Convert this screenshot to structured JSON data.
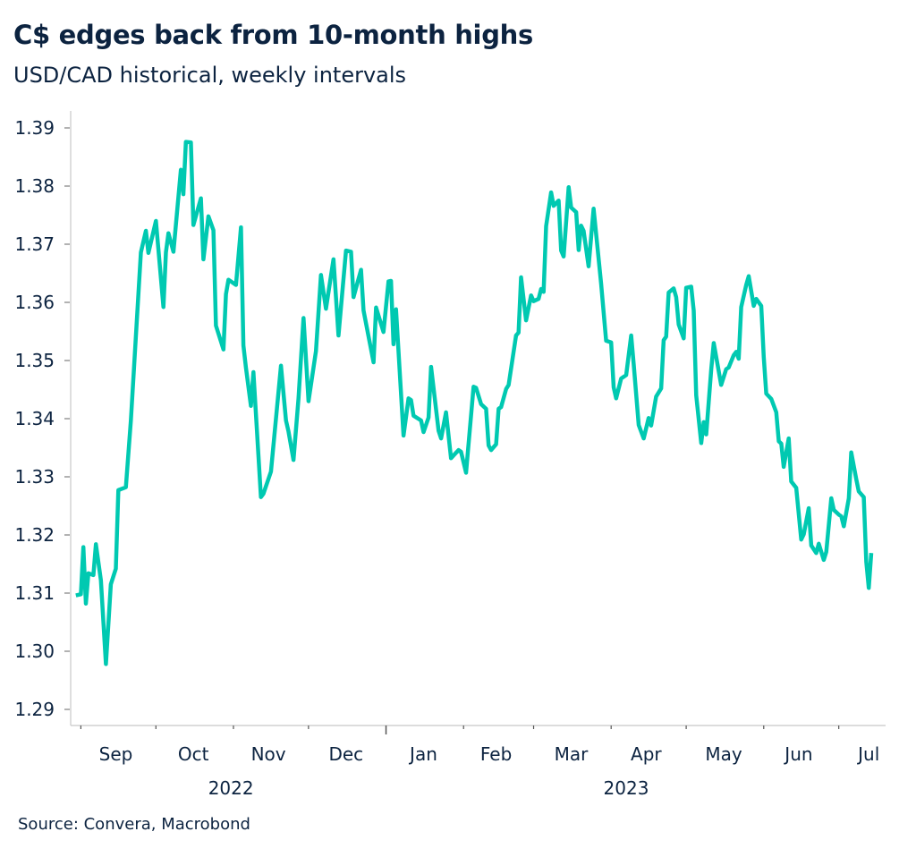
{
  "chart_data": {
    "type": "line",
    "title": "C$ edges back from 10-month highs",
    "subtitle": "USD/CAD historical, weekly intervals",
    "source": "Source: Convera, Macrobond",
    "xlabel": "",
    "ylabel": "",
    "line_color": "#00c9b1",
    "text_color": "#0c2340",
    "grid": false,
    "legend": "none",
    "xlim": [
      "2022-08-29",
      "2023-07-19"
    ],
    "ylim": [
      1.29,
      1.39
    ],
    "y_ticks": [
      "1.29",
      "1.30",
      "1.31",
      "1.32",
      "1.33",
      "1.34",
      "1.35",
      "1.36",
      "1.37",
      "1.38",
      "1.39"
    ],
    "x_month_labels": [
      {
        "label": "Sep",
        "date": "2022-09-15"
      },
      {
        "label": "Oct",
        "date": "2022-10-16"
      },
      {
        "label": "Nov",
        "date": "2022-11-15"
      },
      {
        "label": "Dec",
        "date": "2022-12-16"
      },
      {
        "label": "Jan",
        "date": "2023-01-16"
      },
      {
        "label": "Feb",
        "date": "2023-02-14"
      },
      {
        "label": "Mar",
        "date": "2023-03-16"
      },
      {
        "label": "Apr",
        "date": "2023-04-15"
      },
      {
        "label": "May",
        "date": "2023-05-16"
      },
      {
        "label": "Jun",
        "date": "2023-06-15"
      },
      {
        "label": "Jul",
        "date": "2023-07-13"
      }
    ],
    "x_month_ticks": [
      "2022-09-01",
      "2022-10-01",
      "2022-11-01",
      "2022-12-01",
      "2023-01-01",
      "2023-02-01",
      "2023-03-01",
      "2023-04-01",
      "2023-05-01",
      "2023-06-01",
      "2023-07-01"
    ],
    "x_year_labels": [
      {
        "label": "2022",
        "date": "2022-10-31"
      },
      {
        "label": "2023",
        "date": "2023-04-07"
      }
    ],
    "series": [
      {
        "x": [
          "2022-08-30",
          "2022-09-01",
          "2022-09-02",
          "2022-09-03",
          "2022-09-04",
          "2022-09-06",
          "2022-09-07",
          "2022-09-09",
          "2022-09-11",
          "2022-09-13",
          "2022-09-15",
          "2022-09-16",
          "2022-09-19",
          "2022-09-21",
          "2022-09-25",
          "2022-09-27",
          "2022-09-28",
          "2022-10-01",
          "2022-10-04",
          "2022-10-05",
          "2022-10-06",
          "2022-10-08",
          "2022-10-11",
          "2022-10-12",
          "2022-10-13",
          "2022-10-15",
          "2022-10-16",
          "2022-10-19",
          "2022-10-20",
          "2022-10-22",
          "2022-10-24",
          "2022-10-25",
          "2022-10-28",
          "2022-10-29",
          "2022-10-30",
          "2022-11-02",
          "2022-11-04",
          "2022-11-05",
          "2022-11-06",
          "2022-11-08",
          "2022-11-09",
          "2022-11-12",
          "2022-11-13",
          "2022-11-16",
          "2022-11-20",
          "2022-11-22",
          "2022-11-23",
          "2022-11-25",
          "2022-11-27",
          "2022-11-29",
          "2022-12-01",
          "2022-12-04",
          "2022-12-06",
          "2022-12-08",
          "2022-12-11",
          "2022-12-13",
          "2022-12-16",
          "2022-12-18",
          "2022-12-19",
          "2022-12-22",
          "2022-12-23",
          "2022-12-27",
          "2022-12-28",
          "2022-12-31",
          "2023-01-02",
          "2023-01-03",
          "2023-01-04",
          "2023-01-05",
          "2023-01-08",
          "2023-01-10",
          "2023-01-11",
          "2023-01-12",
          "2023-01-15",
          "2023-01-16",
          "2023-01-18",
          "2023-01-19",
          "2023-01-22",
          "2023-01-23",
          "2023-01-25",
          "2023-01-27",
          "2023-01-30",
          "2023-01-31",
          "2023-02-02",
          "2023-02-05",
          "2023-02-06",
          "2023-02-08",
          "2023-02-10",
          "2023-02-11",
          "2023-02-12",
          "2023-02-14",
          "2023-02-15",
          "2023-02-16",
          "2023-02-18",
          "2023-02-19",
          "2023-02-22",
          "2023-02-23",
          "2023-02-24",
          "2023-02-26",
          "2023-02-28",
          "2023-03-01",
          "2023-03-03",
          "2023-03-04",
          "2023-03-05",
          "2023-03-06",
          "2023-03-08",
          "2023-03-09",
          "2023-03-11",
          "2023-03-12",
          "2023-03-13",
          "2023-03-15",
          "2023-03-16",
          "2023-03-18",
          "2023-03-19",
          "2023-03-20",
          "2023-03-21",
          "2023-03-23",
          "2023-03-25",
          "2023-03-28",
          "2023-03-30",
          "2023-04-01",
          "2023-04-02",
          "2023-04-03",
          "2023-04-05",
          "2023-04-07",
          "2023-04-09",
          "2023-04-10",
          "2023-04-12",
          "2023-04-14",
          "2023-04-16",
          "2023-04-17",
          "2023-04-19",
          "2023-04-21",
          "2023-04-22",
          "2023-04-23",
          "2023-04-24",
          "2023-04-26",
          "2023-04-27",
          "2023-04-28",
          "2023-04-30",
          "2023-05-01",
          "2023-05-03",
          "2023-05-04",
          "2023-05-05",
          "2023-05-07",
          "2023-05-08",
          "2023-05-09",
          "2023-05-11",
          "2023-05-12",
          "2023-05-15",
          "2023-05-17",
          "2023-05-18",
          "2023-05-20",
          "2023-05-21",
          "2023-05-22",
          "2023-05-23",
          "2023-05-25",
          "2023-05-26",
          "2023-05-28",
          "2023-05-29",
          "2023-05-31",
          "2023-06-01",
          "2023-06-02",
          "2023-06-04",
          "2023-06-06",
          "2023-06-07",
          "2023-06-08",
          "2023-06-09",
          "2023-06-11",
          "2023-06-12",
          "2023-06-14",
          "2023-06-16",
          "2023-06-17",
          "2023-06-19",
          "2023-06-20",
          "2023-06-22",
          "2023-06-23",
          "2023-06-25",
          "2023-06-26",
          "2023-06-28",
          "2023-06-29",
          "2023-07-01",
          "2023-07-02",
          "2023-07-03",
          "2023-07-05",
          "2023-07-06",
          "2023-07-08",
          "2023-07-09",
          "2023-07-11",
          "2023-07-12",
          "2023-07-13",
          "2023-07-14"
        ],
        "y": [
          1.3096,
          1.3098,
          1.3179,
          1.3082,
          1.3134,
          1.3131,
          1.3184,
          1.3122,
          1.2978,
          1.3115,
          1.3142,
          1.3277,
          1.3282,
          1.3397,
          1.3686,
          1.3723,
          1.3685,
          1.374,
          1.3592,
          1.3686,
          1.3719,
          1.3687,
          1.3828,
          1.3786,
          1.3876,
          1.3875,
          1.3733,
          1.3779,
          1.3674,
          1.3748,
          1.3724,
          1.356,
          1.3519,
          1.3614,
          1.3639,
          1.363,
          1.3729,
          1.3526,
          1.3488,
          1.3422,
          1.348,
          1.3265,
          1.3271,
          1.3309,
          1.3491,
          1.3397,
          1.3378,
          1.3329,
          1.3435,
          1.3573,
          1.343,
          1.3516,
          1.3647,
          1.3589,
          1.3674,
          1.3543,
          1.3689,
          1.3687,
          1.3609,
          1.3656,
          1.3586,
          1.3497,
          1.3591,
          1.3549,
          1.3636,
          1.3637,
          1.3528,
          1.3588,
          1.3371,
          1.3435,
          1.3432,
          1.3405,
          1.3397,
          1.3377,
          1.3402,
          1.3489,
          1.3379,
          1.3366,
          1.3411,
          1.3332,
          1.3346,
          1.3343,
          1.3307,
          1.3455,
          1.3453,
          1.3425,
          1.3417,
          1.3354,
          1.3346,
          1.3356,
          1.3417,
          1.342,
          1.3451,
          1.3458,
          1.3543,
          1.3548,
          1.3643,
          1.3569,
          1.3612,
          1.3602,
          1.3606,
          1.3623,
          1.3618,
          1.3731,
          1.3789,
          1.3766,
          1.3775,
          1.3689,
          1.3679,
          1.3798,
          1.3763,
          1.3755,
          1.369,
          1.3732,
          1.3723,
          1.3662,
          1.3761,
          1.3632,
          1.3534,
          1.3531,
          1.3454,
          1.3435,
          1.3469,
          1.3475,
          1.3543,
          1.3494,
          1.3389,
          1.3366,
          1.3401,
          1.3388,
          1.3438,
          1.3452,
          1.3535,
          1.3541,
          1.3617,
          1.3624,
          1.3609,
          1.3562,
          1.3538,
          1.3625,
          1.3627,
          1.3586,
          1.344,
          1.3358,
          1.3394,
          1.3373,
          1.3485,
          1.353,
          1.3458,
          1.3485,
          1.3488,
          1.3509,
          1.3515,
          1.3503,
          1.3592,
          1.363,
          1.3645,
          1.3594,
          1.3606,
          1.3594,
          1.3506,
          1.3443,
          1.3434,
          1.3411,
          1.3361,
          1.3357,
          1.3317,
          1.3366,
          1.3292,
          1.3281,
          1.3192,
          1.3201,
          1.3246,
          1.3182,
          1.3169,
          1.3185,
          1.3157,
          1.3171,
          1.3263,
          1.3243,
          1.3235,
          1.3232,
          1.3215,
          1.3263,
          1.3342,
          1.3296,
          1.3275,
          1.3265,
          1.3154,
          1.3109,
          1.3169
        ]
      }
    ]
  }
}
